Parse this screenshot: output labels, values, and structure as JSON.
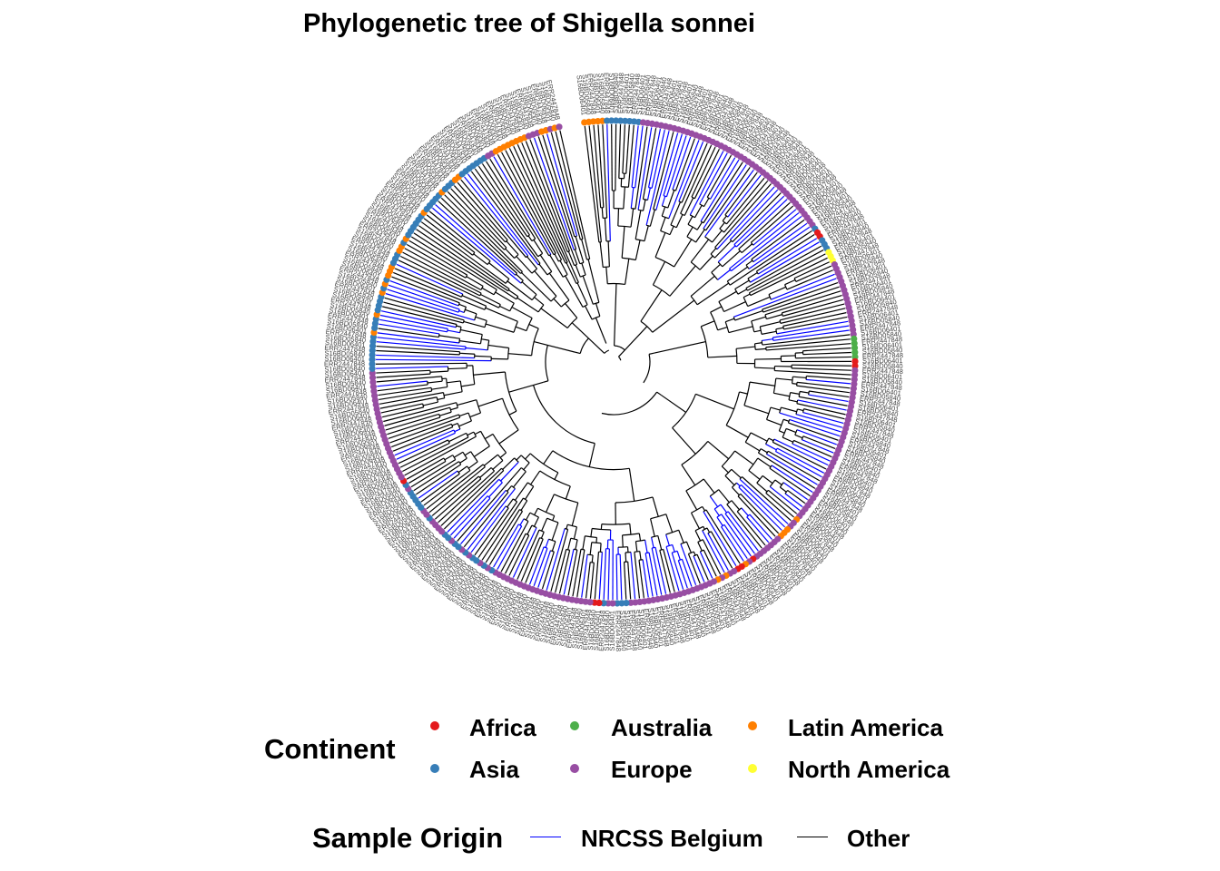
{
  "title": "Phylogenetic tree of Shigella sonnei",
  "legend_continent": {
    "title": "Continent",
    "items": [
      {
        "label": "Africa",
        "color": "#E41A1C"
      },
      {
        "label": "Australia",
        "color": "#4DAF4A"
      },
      {
        "label": "Latin America",
        "color": "#FF7F00"
      },
      {
        "label": "Asia",
        "color": "#377EB8"
      },
      {
        "label": "Europe",
        "color": "#984EA3"
      },
      {
        "label": "North America",
        "color": "#FFFF33"
      }
    ]
  },
  "legend_origin": {
    "title": "Sample Origin",
    "items": [
      {
        "label": "NRCSS Belgium",
        "color": "#0000FF"
      },
      {
        "label": "Other",
        "color": "#000000"
      }
    ]
  },
  "tree": {
    "layout": "circular",
    "tip_label_samples": [
      "S16BD06401",
      "S16BD05840",
      "ERR2447848"
    ]
  }
}
